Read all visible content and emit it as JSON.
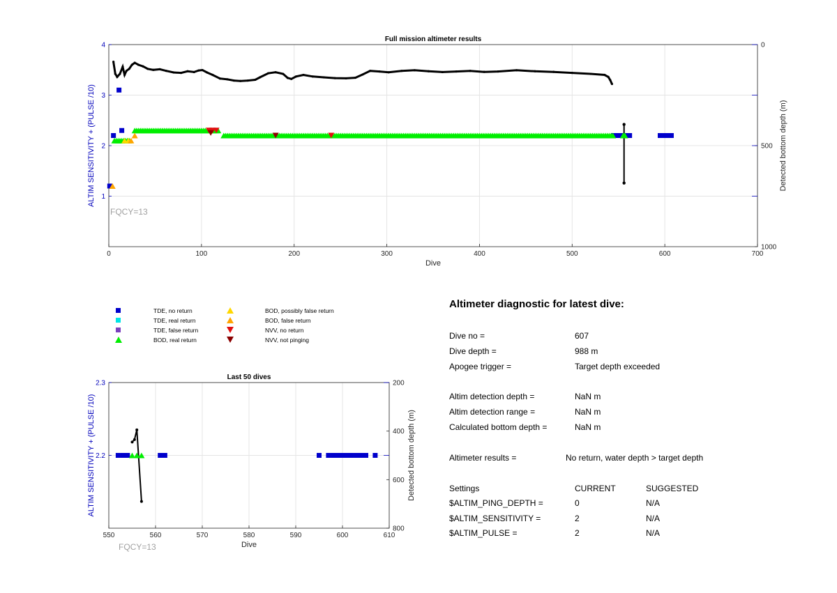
{
  "colors": {
    "tde_no_return": "#0000cc",
    "tde_real_return": "#00e5e5",
    "tde_false_return": "#7b3fbf",
    "bod_real_return": "#00ee00",
    "bod_possibly_false_return": "#ffd700",
    "bod_false_return": "#ffa500",
    "nvv_no_return": "#e01010",
    "nvv_not_pinging": "#8b0000",
    "depth_line": "#000000",
    "left_axis": "#0000bb",
    "fqcy_label": "#a0a0a0"
  },
  "legend": {
    "items": [
      {
        "label": "TDE, no return",
        "symbol": "square",
        "color_key": "tde_no_return"
      },
      {
        "label": "TDE, real return",
        "symbol": "square",
        "color_key": "tde_real_return"
      },
      {
        "label": "TDE, false return",
        "symbol": "square",
        "color_key": "tde_false_return"
      },
      {
        "label": "BOD, real return",
        "symbol": "triangle-up",
        "color_key": "bod_real_return"
      },
      {
        "label": "BOD, possibly false return",
        "symbol": "triangle-up",
        "color_key": "bod_possibly_false_return"
      },
      {
        "label": "BOD, false return",
        "symbol": "triangle-up",
        "color_key": "bod_false_return"
      },
      {
        "label": "NVV, no return",
        "symbol": "triangle-down",
        "color_key": "nvv_no_return"
      },
      {
        "label": "NVV, not pinging",
        "symbol": "triangle-down",
        "color_key": "nvv_not_pinging"
      }
    ]
  },
  "chart_data": [
    {
      "type": "scatter",
      "title": "Full mission altimeter results",
      "xlabel": "Dive",
      "ylabel": "ALTIM SENSITIVITY + (PULSE /10)",
      "ylabel_right": "Detected bottom depth (m)",
      "annotation": "FQCY=13",
      "xlim": [
        0,
        700
      ],
      "ylim": [
        0,
        4
      ],
      "ylim_right": [
        1000,
        0
      ],
      "xticks": [
        0,
        100,
        200,
        300,
        400,
        500,
        600,
        700
      ],
      "yticks": [
        1,
        2,
        3,
        4
      ],
      "yticks_right": [
        0,
        500,
        1000
      ],
      "grid": true,
      "series": [
        {
          "key": "tde_no_return",
          "marker": "square",
          "points": [
            [
              1,
              1.2
            ],
            [
              5,
              2.2
            ],
            [
              11,
              3.1
            ],
            [
              14,
              2.3
            ],
            [
              545,
              2.2
            ],
            [
              548,
              2.2
            ],
            [
              551,
              2.2
            ],
            [
              554,
              2.2
            ],
            [
              557,
              2.2
            ],
            [
              560,
              2.2
            ],
            [
              562,
              2.2
            ],
            [
              595,
              2.2
            ],
            [
              597,
              2.2
            ],
            [
              599,
              2.2
            ],
            [
              601,
              2.2
            ],
            [
              603,
              2.2
            ],
            [
              605,
              2.2
            ],
            [
              607,
              2.2
            ]
          ]
        },
        {
          "key": "bod_real_return",
          "marker": "triangle-up",
          "segments": [
            {
              "from": 6,
              "to": 22,
              "step": 2,
              "y": 2.1
            },
            {
              "from": 28,
              "to": 118,
              "step": 2,
              "y": 2.3
            },
            {
              "from": 124,
              "to": 544,
              "step": 2,
              "y": 2.2
            }
          ],
          "points": [
            [
              555,
              2.2
            ],
            [
              556,
              2.2
            ],
            [
              557,
              2.2
            ]
          ]
        },
        {
          "key": "bod_possibly_false_return",
          "marker": "triangle-up",
          "points": [
            [
              17,
              2.1
            ],
            [
              21,
              2.1
            ]
          ]
        },
        {
          "key": "bod_false_return",
          "marker": "triangle-up",
          "points": [
            [
              4,
              1.2
            ],
            [
              24,
              2.1
            ],
            [
              28,
              2.2
            ]
          ]
        },
        {
          "key": "nvv_no_return",
          "marker": "triangle-down",
          "points": [
            [
              108,
              2.3
            ],
            [
              112,
              2.3
            ],
            [
              116,
              2.3
            ],
            [
              240,
              2.2
            ]
          ]
        },
        {
          "key": "nvv_not_pinging",
          "marker": "triangle-down",
          "points": [
            [
              110,
              2.25
            ],
            [
              180,
              2.2
            ]
          ]
        }
      ],
      "depth_line": {
        "key": "depth_line",
        "axis": "right",
        "points": [
          [
            5,
            85
          ],
          [
            7,
            145
          ],
          [
            9,
            160
          ],
          [
            12,
            145
          ],
          [
            15,
            110
          ],
          [
            17,
            150
          ],
          [
            19,
            130
          ],
          [
            22,
            120
          ],
          [
            25,
            100
          ],
          [
            28,
            90
          ],
          [
            32,
            100
          ],
          [
            37,
            108
          ],
          [
            42,
            120
          ],
          [
            48,
            125
          ],
          [
            55,
            122
          ],
          [
            62,
            130
          ],
          [
            70,
            138
          ],
          [
            78,
            140
          ],
          [
            85,
            132
          ],
          [
            92,
            136
          ],
          [
            97,
            128
          ],
          [
            101,
            126
          ],
          [
            106,
            138
          ],
          [
            112,
            150
          ],
          [
            120,
            168
          ],
          [
            128,
            172
          ],
          [
            135,
            178
          ],
          [
            142,
            180
          ],
          [
            150,
            178
          ],
          [
            158,
            174
          ],
          [
            163,
            162
          ],
          [
            172,
            142
          ],
          [
            180,
            137
          ],
          [
            188,
            145
          ],
          [
            193,
            165
          ],
          [
            197,
            170
          ],
          [
            202,
            158
          ],
          [
            210,
            150
          ],
          [
            220,
            158
          ],
          [
            232,
            162
          ],
          [
            244,
            166
          ],
          [
            256,
            167
          ],
          [
            266,
            164
          ],
          [
            274,
            148
          ],
          [
            282,
            130
          ],
          [
            292,
            133
          ],
          [
            302,
            137
          ],
          [
            316,
            130
          ],
          [
            330,
            127
          ],
          [
            345,
            132
          ],
          [
            360,
            136
          ],
          [
            375,
            133
          ],
          [
            390,
            130
          ],
          [
            405,
            135
          ],
          [
            420,
            133
          ],
          [
            440,
            127
          ],
          [
            460,
            132
          ],
          [
            480,
            135
          ],
          [
            500,
            140
          ],
          [
            520,
            145
          ],
          [
            535,
            150
          ],
          [
            539,
            160
          ],
          [
            541,
            175
          ],
          [
            543,
            195
          ]
        ],
        "spike": [
          [
            556,
            395
          ],
          [
            556,
            685
          ]
        ]
      }
    },
    {
      "type": "scatter",
      "title": "Last 50 dives",
      "xlabel": "Dive",
      "ylabel": "ALTIM SENSITIVITY + (PULSE /10)",
      "ylabel_right": "Detected bottom depth (m)",
      "annotation": "FQCY=13",
      "xlim": [
        550,
        610
      ],
      "ylim": [
        2.1,
        2.3
      ],
      "ylim_right": [
        800,
        200
      ],
      "xticks": [
        550,
        560,
        570,
        580,
        590,
        600,
        610
      ],
      "yticks": [
        2.2,
        2.3
      ],
      "yticks_right": [
        200,
        400,
        600,
        800
      ],
      "grid": true,
      "series": [
        {
          "key": "tde_no_return",
          "marker": "square",
          "points": [
            [
              552,
              2.2
            ],
            [
              553,
              2.2
            ],
            [
              554,
              2.2
            ],
            [
              561,
              2.2
            ],
            [
              562,
              2.2
            ],
            [
              595,
              2.2
            ],
            [
              597,
              2.2
            ],
            [
              598,
              2.2
            ],
            [
              599,
              2.2
            ],
            [
              600,
              2.2
            ],
            [
              601,
              2.2
            ],
            [
              602,
              2.2
            ],
            [
              603,
              2.2
            ],
            [
              604,
              2.2
            ],
            [
              605,
              2.2
            ],
            [
              607,
              2.2
            ]
          ]
        },
        {
          "key": "bod_real_return",
          "marker": "triangle-up",
          "points": [
            [
              555,
              2.2
            ],
            [
              556,
              2.2
            ],
            [
              557,
              2.2
            ]
          ]
        }
      ],
      "depth_line": {
        "key": "depth_line",
        "axis": "right",
        "points": [
          [
            555,
            445
          ],
          [
            555.5,
            435
          ],
          [
            556,
            395
          ],
          [
            557,
            690
          ]
        ]
      }
    }
  ],
  "diagnostic": {
    "title": "Altimeter diagnostic for latest dive:",
    "rows": [
      {
        "label": "Dive no =",
        "value": "607"
      },
      {
        "label": "Dive depth =",
        "value": "988 m"
      },
      {
        "label": "Apogee trigger =",
        "value": "Target depth exceeded"
      },
      {
        "label": "Altim detection depth =",
        "value": "NaN m"
      },
      {
        "label": "Altim detection range =",
        "value": "NaN m"
      },
      {
        "label": "Calculated bottom depth =",
        "value": "NaN m"
      },
      {
        "label": "Altimeter results =",
        "value": "No return, water depth > target depth"
      }
    ],
    "settings_header": {
      "label": "Settings",
      "current": "CURRENT",
      "suggested": "SUGGESTED"
    },
    "settings": [
      {
        "label": "$ALTIM_PING_DEPTH =",
        "current": "0",
        "suggested": "N/A"
      },
      {
        "label": "$ALTIM_SENSITIVITY =",
        "current": "2",
        "suggested": "N/A"
      },
      {
        "label": "$ALTIM_PULSE =",
        "current": "2",
        "suggested": "N/A"
      }
    ]
  }
}
